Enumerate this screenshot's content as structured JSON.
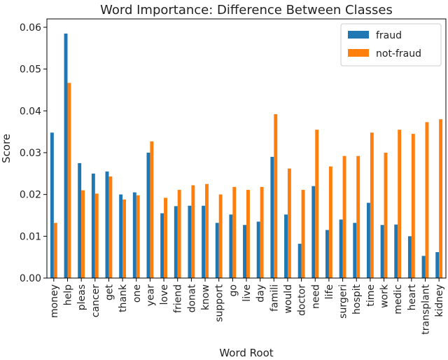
{
  "chart_data": {
    "type": "bar",
    "title": "Word Importance: Difference Between Classes",
    "xlabel": "Word Root",
    "ylabel": "Score",
    "ylim": [
      0,
      0.062
    ],
    "yticks": [
      "0.00",
      "0.01",
      "0.02",
      "0.03",
      "0.04",
      "0.05",
      "0.06"
    ],
    "grid": false,
    "legend_position": "top-right",
    "categories": [
      "money",
      "help",
      "pleas",
      "cancer",
      "get",
      "thank",
      "one",
      "year",
      "love",
      "friend",
      "donat",
      "know",
      "support",
      "go",
      "live",
      "day",
      "famili",
      "would",
      "doctor",
      "need",
      "life",
      "surgeri",
      "hospit",
      "time",
      "work",
      "medic",
      "heart",
      "transplant",
      "kidney"
    ],
    "series": [
      {
        "name": "fraud",
        "color": "#1f77b4",
        "values": [
          0.0348,
          0.0585,
          0.0275,
          0.025,
          0.0255,
          0.02,
          0.0205,
          0.03,
          0.0155,
          0.0172,
          0.0173,
          0.0173,
          0.0132,
          0.0152,
          0.0127,
          0.0135,
          0.029,
          0.0152,
          0.0082,
          0.022,
          0.0115,
          0.014,
          0.0132,
          0.018,
          0.0127,
          0.0128,
          0.01,
          0.0053,
          0.0062
        ]
      },
      {
        "name": "not-fraud",
        "color": "#ff7f0e",
        "values": [
          0.0132,
          0.0467,
          0.021,
          0.0202,
          0.0243,
          0.0188,
          0.0198,
          0.0327,
          0.0192,
          0.0211,
          0.0222,
          0.0225,
          0.02,
          0.0218,
          0.0211,
          0.0218,
          0.0392,
          0.0262,
          0.0211,
          0.0355,
          0.0267,
          0.0292,
          0.0292,
          0.0348,
          0.03,
          0.0355,
          0.0345,
          0.0373,
          0.038
        ]
      }
    ]
  }
}
